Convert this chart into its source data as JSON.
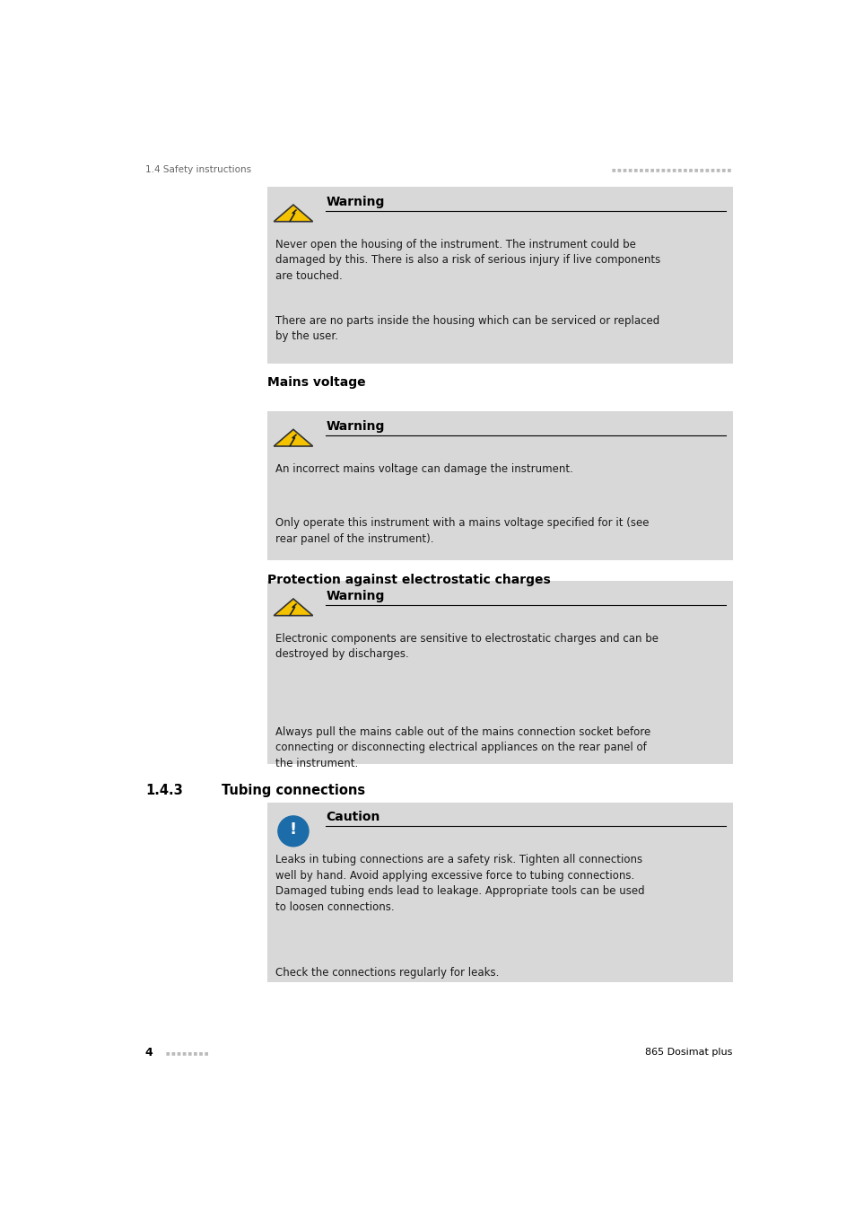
{
  "page_width": 9.54,
  "page_height": 13.5,
  "bg_color": "#ffffff",
  "header_left": "1.4 Safety instructions",
  "footer_left_num": "4",
  "footer_right": "865 Dosimat plus",
  "box_bg": "#d8d8d8",
  "section_heading1": "Mains voltage",
  "section_heading2": "Protection against electrostatic charges",
  "section_heading3_num": "1.4.3",
  "section_heading3_txt": "Tubing connections",
  "warning_title": "Warning",
  "caution_title": "Caution",
  "warning1_text1": "Never open the housing of the instrument. The instrument could be\ndamaged by this. There is also a risk of serious injury if live components\nare touched.",
  "warning1_text2": "There are no parts inside the housing which can be serviced or replaced\nby the user.",
  "warning2_text1": "An incorrect mains voltage can damage the instrument.",
  "warning2_text2": "Only operate this instrument with a mains voltage specified for it (see\nrear panel of the instrument).",
  "warning3_text1": "Electronic components are sensitive to electrostatic charges and can be\ndestroyed by discharges.",
  "warning3_text2": "Always pull the mains cable out of the mains connection socket before\nconnecting or disconnecting electrical appliances on the rear panel of\nthe instrument.",
  "caution1_text1": "Leaks in tubing connections are a safety risk. Tighten all connections\nwell by hand. Avoid applying excessive force to tubing connections.\nDamaged tubing ends lead to leakage. Appropriate tools can be used\nto loosen connections.",
  "caution1_text2": "Check the connections regularly for leaks.",
  "text_color": "#1a1a1a",
  "heading_color": "#000000",
  "line_color": "#000000",
  "header_text_color": "#666666",
  "body_font_size": 8.5,
  "heading_font_size": 9.5,
  "section_font_size": 10.0,
  "warning_font_size": 10.0
}
